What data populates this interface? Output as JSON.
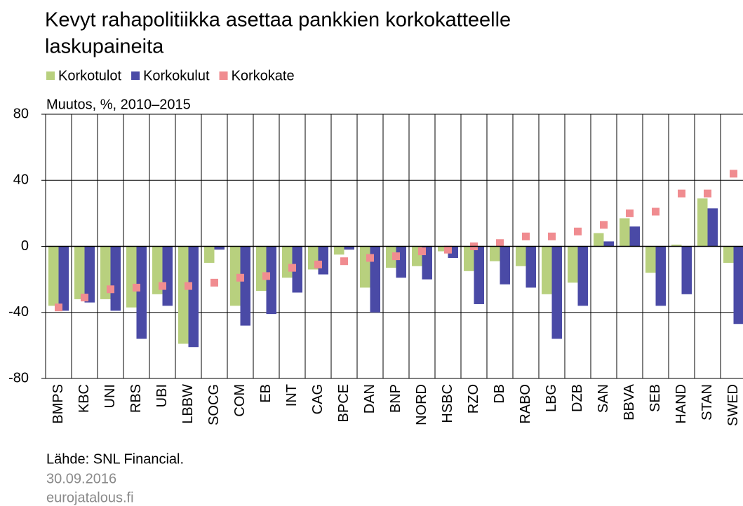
{
  "chart_data": {
    "type": "bar",
    "title": [
      "Kevyt rahapolitiikka asettaa pankkien korkokatteelle",
      "laskupaineita"
    ],
    "subtitle": "Muutos, %, 2010–2015",
    "categories": [
      "BMPS",
      "KBC",
      "UNI",
      "RBS",
      "UBI",
      "LBBW",
      "SOCG",
      "COM",
      "EB",
      "INT",
      "CAG",
      "BPCE",
      "DAN",
      "BNP",
      "NORD",
      "HSBC",
      "RZO",
      "DB",
      "RABO",
      "LBG",
      "DZB",
      "SAN",
      "BBVA",
      "SEB",
      "HAND",
      "STAN",
      "SWED"
    ],
    "series": [
      {
        "name": "Korkotulot",
        "color": "#b8d07e",
        "mark": "bar",
        "values": [
          -36,
          -32,
          -32,
          -37,
          -29,
          -59,
          -10,
          -36,
          -27,
          -19,
          -14,
          -5,
          -25,
          -13,
          -12,
          -3,
          -15,
          -9,
          -12,
          -29,
          -22,
          8,
          17,
          -16,
          1,
          29,
          -10
        ]
      },
      {
        "name": "Korkokulut",
        "color": "#4a4aa6",
        "mark": "bar",
        "values": [
          -39,
          -34,
          -39,
          -56,
          -36,
          -61,
          -2,
          -48,
          -41,
          -28,
          -17,
          -2,
          -40,
          -19,
          -20,
          -7,
          -35,
          -23,
          -25,
          -56,
          -36,
          3,
          12,
          -36,
          -29,
          23,
          -47
        ]
      },
      {
        "name": "Korkokate",
        "color": "#f08c90",
        "mark": "square",
        "values": [
          -37,
          -31,
          -26,
          -25,
          -24,
          -24,
          -22,
          -19,
          -18,
          -13,
          -11,
          -9,
          -7,
          -6,
          -3,
          -2,
          0,
          2,
          6,
          6,
          9,
          13,
          20,
          21,
          32,
          32,
          44
        ]
      }
    ],
    "ylim": [
      -80,
      80
    ],
    "yticks": [
      -80,
      -40,
      0,
      40,
      80
    ],
    "grid": true,
    "source": "Lähde: SNL Financial.",
    "date": "30.09.2016",
    "site": "eurojatalous.fi"
  }
}
